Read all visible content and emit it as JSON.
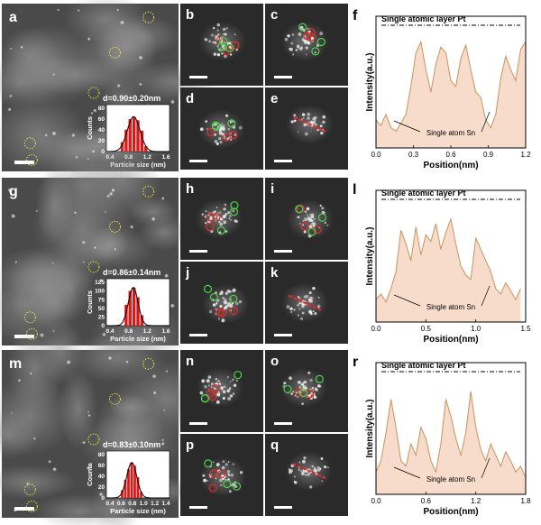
{
  "colors": {
    "fill_area": "#f8dccb",
    "trace": "#c8925e",
    "red_bar": "#e01515",
    "gaussian": "#000000",
    "circle_green": "#4cd44c",
    "circle_red": "#e82a2a",
    "circle_yellow": "#e6e640",
    "scalebar": "#ffffff",
    "marker_line": "#e82a2a"
  },
  "rows": [
    {
      "wide_label": "a",
      "small_labels": [
        "b",
        "c",
        "d",
        "e"
      ],
      "plot_label": "f",
      "hist": {
        "annotation": "d=0.90±0.20nm",
        "ylabel": "Counts",
        "xlabel": "Particle size (nm)",
        "yticks": [
          "0",
          "20",
          "40",
          "60",
          "80"
        ],
        "xticks": [
          "0.4",
          "0.8",
          "1.2",
          "1.6"
        ]
      },
      "plot": {
        "top_label": "Single atomic layer Pt",
        "bottom_label": "Single atom Sn",
        "ylabel": "Intensity(a.u.)",
        "xlabel": "Position(nm)",
        "xticks": [
          "0.0",
          "0.3",
          "0.6",
          "0.9",
          "1.2"
        ]
      }
    },
    {
      "wide_label": "g",
      "small_labels": [
        "h",
        "i",
        "j",
        "k"
      ],
      "plot_label": "l",
      "hist": {
        "annotation": "d=0.86±0.14nm",
        "ylabel": "Counts",
        "xlabel": "Particle size (nm)",
        "yticks": [
          "0",
          "25",
          "50",
          "75",
          "100",
          "125"
        ],
        "xticks": [
          "0.4",
          "0.8",
          "1.2",
          "1.6"
        ]
      },
      "plot": {
        "top_label": "Single atomic layer Pt",
        "bottom_label": "Single atom Sn",
        "ylabel": "Intensity(a.u.)",
        "xlabel": "Position(nm)",
        "xticks": [
          "0.0",
          "0.5",
          "1.0",
          "1.5"
        ]
      }
    },
    {
      "wide_label": "m",
      "small_labels": [
        "n",
        "o",
        "p",
        "q"
      ],
      "plot_label": "r",
      "hist": {
        "annotation": "d=0.83±0.10nm",
        "ylabel": "Counts",
        "xlabel": "Particle size (nm)",
        "yticks": [
          "0",
          "20",
          "40",
          "60",
          "80"
        ],
        "xticks": [
          "0.4",
          "0.6",
          "0.8",
          "1.0",
          "1.2",
          "1.4"
        ]
      },
      "plot": {
        "top_label": "Single atomic layer Pt",
        "bottom_label": "Single atom Sn",
        "ylabel": "Intensity(a.u.)",
        "xlabel": "Position(nm)",
        "xticks": [
          "0.0",
          "0.6",
          "1.2",
          "1.8"
        ]
      }
    }
  ],
  "chart_data": [
    {
      "type": "bar",
      "title": "",
      "xlabel": "Particle size (nm)",
      "ylabel": "Counts",
      "xlim": [
        0.2,
        1.8
      ],
      "ylim": [
        0,
        90
      ],
      "x": [
        0.6,
        0.7,
        0.8,
        0.9,
        1.0,
        1.1,
        1.2
      ],
      "values": [
        18,
        42,
        62,
        67,
        60,
        40,
        10
      ]
    },
    {
      "type": "bar",
      "title": "",
      "xlabel": "Particle size (nm)",
      "ylabel": "Counts",
      "xlim": [
        0.2,
        1.8
      ],
      "ylim": [
        0,
        135
      ],
      "x": [
        0.7,
        0.8,
        0.9,
        1.0,
        1.1
      ],
      "values": [
        60,
        100,
        110,
        82,
        30
      ]
    },
    {
      "type": "bar",
      "title": "",
      "xlabel": "Particle size (nm)",
      "ylabel": "Counts",
      "xlim": [
        0.4,
        1.4
      ],
      "ylim": [
        0,
        90
      ],
      "x": [
        0.65,
        0.7,
        0.75,
        0.8,
        0.85,
        0.9,
        0.95
      ],
      "values": [
        15,
        35,
        55,
        68,
        62,
        40,
        12
      ]
    },
    {
      "type": "area",
      "title": "",
      "xlabel": "Position(nm)",
      "ylabel": "Intensity(a.u.)",
      "xlim": [
        0,
        1.2
      ],
      "x": [
        0,
        0.04,
        0.08,
        0.12,
        0.16,
        0.2,
        0.24,
        0.28,
        0.32,
        0.36,
        0.4,
        0.44,
        0.48,
        0.52,
        0.56,
        0.6,
        0.64,
        0.68,
        0.72,
        0.76,
        0.8,
        0.84,
        0.88,
        0.92,
        0.96,
        1.0,
        1.04,
        1.08,
        1.12,
        1.16,
        1.2
      ],
      "y": [
        0.25,
        0.2,
        0.3,
        0.18,
        0.15,
        0.22,
        0.3,
        0.55,
        0.85,
        0.95,
        0.7,
        0.5,
        0.75,
        0.9,
        0.85,
        0.6,
        0.55,
        0.8,
        0.92,
        0.7,
        0.5,
        0.45,
        0.25,
        0.18,
        0.3,
        0.62,
        0.82,
        0.7,
        0.6,
        0.88,
        0.95
      ]
    },
    {
      "type": "area",
      "title": "",
      "xlabel": "Position(nm)",
      "ylabel": "Intensity(a.u.)",
      "xlim": [
        0,
        1.5
      ],
      "x": [
        0,
        0.05,
        0.1,
        0.15,
        0.2,
        0.25,
        0.3,
        0.35,
        0.4,
        0.45,
        0.5,
        0.55,
        0.6,
        0.65,
        0.7,
        0.75,
        0.8,
        0.85,
        0.9,
        0.95,
        1.0,
        1.05,
        1.1,
        1.15,
        1.2,
        1.25,
        1.3,
        1.35,
        1.4,
        1.45
      ],
      "y": [
        0.2,
        0.25,
        0.18,
        0.3,
        0.45,
        0.82,
        0.7,
        0.55,
        0.85,
        0.6,
        0.78,
        0.72,
        0.88,
        0.65,
        0.8,
        0.92,
        0.7,
        0.5,
        0.42,
        0.38,
        0.75,
        0.65,
        0.55,
        0.45,
        0.3,
        0.25,
        0.35,
        0.28,
        0.2,
        0.3
      ]
    },
    {
      "type": "area",
      "title": "",
      "xlabel": "Position(nm)",
      "ylabel": "Intensity(a.u.)",
      "xlim": [
        0,
        1.8
      ],
      "x": [
        0,
        0.06,
        0.12,
        0.18,
        0.24,
        0.3,
        0.36,
        0.42,
        0.48,
        0.54,
        0.6,
        0.66,
        0.72,
        0.78,
        0.84,
        0.9,
        0.96,
        1.02,
        1.08,
        1.14,
        1.2,
        1.26,
        1.32,
        1.38,
        1.44,
        1.5,
        1.56,
        1.62,
        1.68,
        1.74,
        1.8
      ],
      "y": [
        0.2,
        0.3,
        0.55,
        0.85,
        0.6,
        0.3,
        0.25,
        0.45,
        0.35,
        0.6,
        0.5,
        0.3,
        0.2,
        0.45,
        0.85,
        0.7,
        0.5,
        0.35,
        0.55,
        0.92,
        0.6,
        0.4,
        0.3,
        0.45,
        0.35,
        0.25,
        0.38,
        0.3,
        0.2,
        0.25,
        0.15
      ]
    }
  ]
}
